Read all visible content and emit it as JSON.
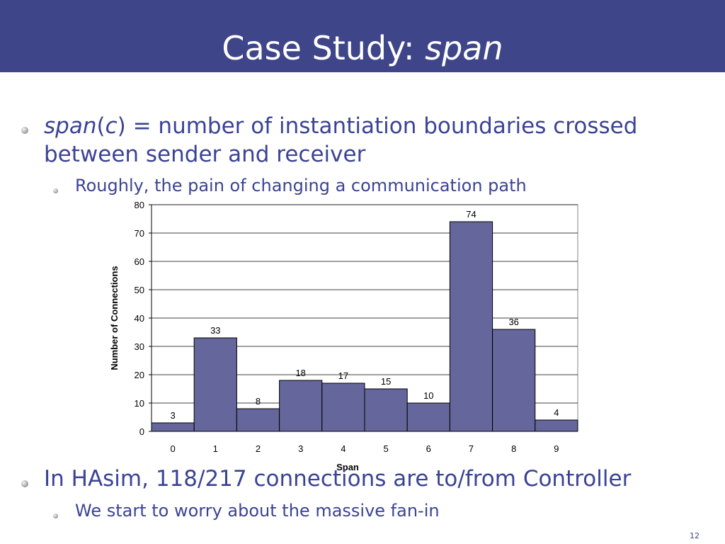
{
  "slide": {
    "title_prefix": "Case Study: ",
    "title_italic": "span",
    "bullet1_italic": "span",
    "bullet1_paren_open": "(",
    "bullet1_c": "c",
    "bullet1_rest": ") = number of instantiation boundaries crossed between sender and receiver",
    "bullet2": "Roughly, the pain of changing a communication path",
    "bullet3": "In HAsim, 118/217 connections are to/from Controller",
    "bullet4": "We start to worry about the massive fan-in",
    "page_number": "12"
  },
  "colors": {
    "title_bar": "#3f4589",
    "text": "#3b4395",
    "bar_fill": "#64669c",
    "bar_stroke": "#000000"
  },
  "chart_data": {
    "type": "bar",
    "categories": [
      "0",
      "1",
      "2",
      "3",
      "4",
      "5",
      "6",
      "7",
      "8",
      "9"
    ],
    "values": [
      3,
      33,
      8,
      18,
      17,
      15,
      10,
      74,
      36,
      4
    ],
    "data_labels": [
      "3",
      "33",
      "8",
      "18",
      "17",
      "15",
      "10",
      "74",
      "36",
      "4"
    ],
    "xlabel": "Span",
    "ylabel": "Number of Connections",
    "ylim": [
      0,
      80
    ],
    "yticks": [
      0,
      10,
      20,
      30,
      40,
      50,
      60,
      70,
      80
    ],
    "grid": true,
    "legend": "none"
  }
}
